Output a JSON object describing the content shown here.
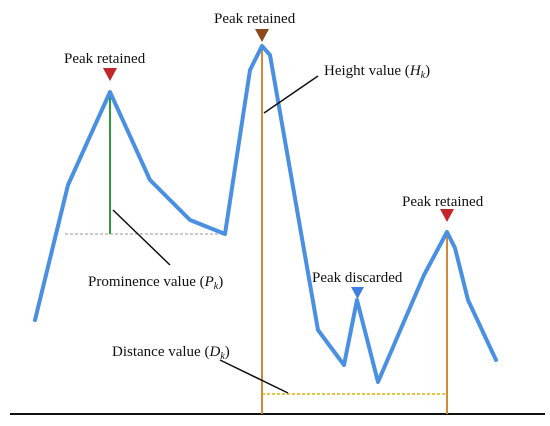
{
  "labels": {
    "peak_retained_1": "Peak retained",
    "peak_retained_2": "Peak retained",
    "peak_retained_3": "Peak retained",
    "peak_discarded": "Peak discarded",
    "height_prefix": "Height value (",
    "height_symbol": "H",
    "height_subscript": "k",
    "height_suffix": ")",
    "prominence_prefix": "Prominence value (",
    "prominence_symbol": "P",
    "prominence_subscript": "k",
    "prominence_suffix": ")",
    "distance_prefix": "Distance value (",
    "distance_symbol": "D",
    "distance_subscript": "k",
    "distance_suffix": ")"
  },
  "colors": {
    "signal": "#4a90e2",
    "retained_marker": "#c0262a",
    "discarded_marker": "#3f7fe0",
    "height_line": "#d08a3a",
    "prominence_line": "#2e9a3a",
    "distance_line": "#d9b300",
    "reference_line": "#9a9a9a",
    "axis": "#111111"
  }
}
